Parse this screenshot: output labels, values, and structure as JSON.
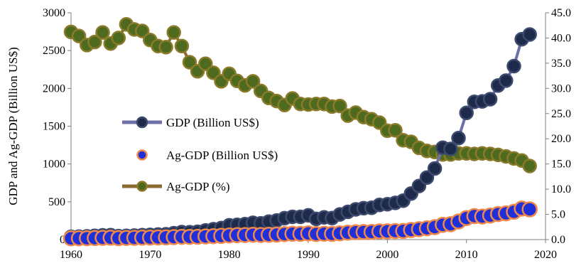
{
  "chart_data": {
    "type": "line",
    "title": "",
    "ylabel": "GDP and Ag-GDP (Billion US$)",
    "y2label": "",
    "xlim": [
      1960,
      2020
    ],
    "ylim": [
      0,
      3000
    ],
    "y2lim": [
      0,
      45
    ],
    "x_ticks": [
      "1960",
      "1970",
      "1980",
      "1990",
      "2000",
      "2010",
      "2020"
    ],
    "y_ticks": [
      "0",
      "500",
      "1000",
      "1500",
      "2000",
      "2500",
      "3000"
    ],
    "y2_ticks": [
      "0.0",
      "5.0",
      "10.0",
      "15.0",
      "20.0",
      "25.0",
      "30.0",
      "35.0",
      "40.0",
      "45.0"
    ],
    "grid": false,
    "legend_position": "center-left",
    "years": [
      1960,
      1961,
      1962,
      1963,
      1964,
      1965,
      1966,
      1967,
      1968,
      1969,
      1970,
      1971,
      1972,
      1973,
      1974,
      1975,
      1976,
      1977,
      1978,
      1979,
      1980,
      1981,
      1982,
      1983,
      1984,
      1985,
      1986,
      1987,
      1988,
      1989,
      1990,
      1991,
      1992,
      1993,
      1994,
      1995,
      1996,
      1997,
      1998,
      1999,
      2000,
      2001,
      2002,
      2003,
      2004,
      2005,
      2006,
      2007,
      2008,
      2009,
      2010,
      2011,
      2012,
      2013,
      2014,
      2015,
      2016,
      2017,
      2018
    ],
    "series": [
      {
        "name": "GDP (Billion US$)",
        "axis": "left",
        "line_color": "#7070a8",
        "marker_fill": "#1e2a4a",
        "marker_stroke": "#3d4a6e",
        "values": [
          37,
          39,
          42,
          49,
          56,
          59,
          46,
          50,
          53,
          58,
          62,
          67,
          71,
          85,
          99,
          98,
          103,
          121,
          137,
          153,
          189,
          196,
          204,
          222,
          215,
          237,
          253,
          283,
          301,
          301,
          321,
          274,
          293,
          284,
          333,
          367,
          400,
          415,
          421,
          459,
          468,
          485,
          515,
          608,
          709,
          820,
          940,
          1216,
          1199,
          1342,
          1676,
          1823,
          1828,
          1857,
          2039,
          2103,
          2295,
          2651,
          2713
        ]
      },
      {
        "name": "Ag-GDP (Billion US$)",
        "axis": "left",
        "line_color": "#f08030",
        "marker_fill": "#2030d8",
        "marker_stroke": "#f0884a",
        "values": [
          16,
          17,
          18,
          20,
          23,
          24,
          19,
          22,
          23,
          25,
          26,
          28,
          29,
          33,
          37,
          36,
          37,
          41,
          45,
          49,
          55,
          58,
          60,
          64,
          60,
          63,
          66,
          72,
          77,
          76,
          82,
          73,
          77,
          75,
          83,
          91,
          98,
          100,
          101,
          108,
          109,
          113,
          114,
          127,
          137,
          150,
          165,
          195,
          203,
          239,
          285,
          310,
          305,
          318,
          338,
          347,
          368,
          410,
          400
        ]
      },
      {
        "name": "Ag-GDP (%)",
        "axis": "right",
        "line_color": "#8a6a30",
        "marker_fill": "#4e6a1e",
        "marker_stroke": "#8a7a2a",
        "values": [
          41.2,
          40.4,
          38.6,
          39.2,
          41.1,
          38.9,
          40.0,
          42.7,
          41.7,
          41.4,
          39.6,
          38.4,
          38.2,
          41.1,
          38.4,
          35.2,
          33.4,
          34.9,
          33.1,
          31.4,
          32.9,
          31.5,
          30.6,
          31.4,
          29.5,
          28.1,
          27.5,
          26.7,
          28.0,
          26.9,
          26.8,
          26.9,
          26.9,
          26.4,
          26.5,
          24.6,
          25.2,
          24.3,
          23.9,
          23.2,
          21.6,
          21.7,
          19.7,
          19.4,
          18.2,
          17.6,
          17.4,
          16.9,
          16.9,
          17.1,
          17.1,
          17.0,
          17.1,
          17.0,
          16.8,
          16.5,
          16.1,
          15.7,
          14.6
        ]
      }
    ]
  }
}
